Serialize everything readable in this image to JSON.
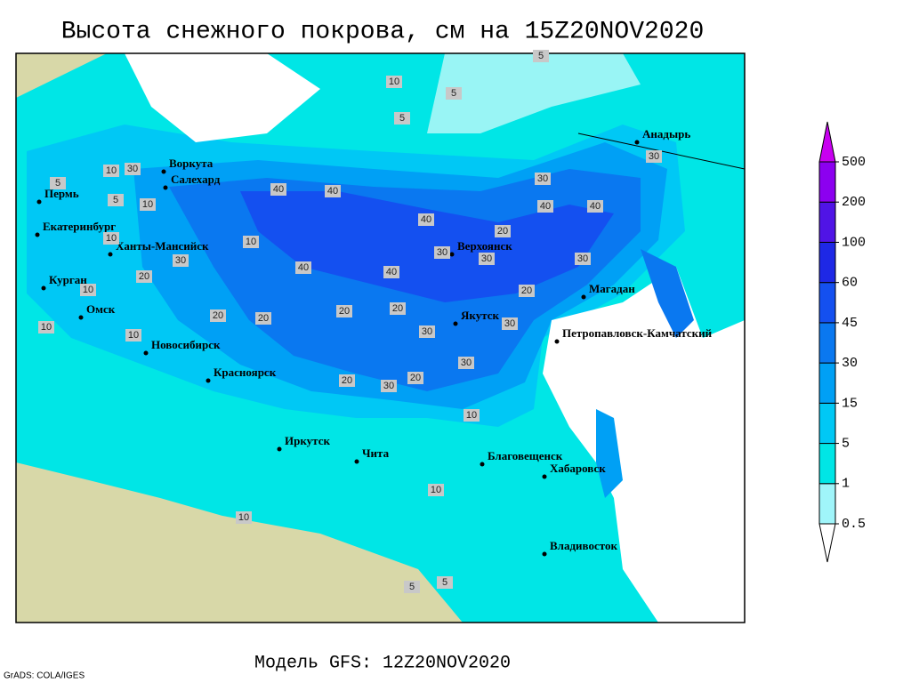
{
  "title": "Высота снежного покрова, см на 15Z20NOV2020",
  "footer": "Модель GFS: 12Z20NOV2020",
  "credit": "GrADS: COLA/IGES",
  "cities": [
    "Воркута",
    "Салехард",
    "Пермь",
    "Екатеринбург",
    "Ханты-Мансийск",
    "Курган",
    "Омск",
    "Новосибирск",
    "Красноярск",
    "Иркутск",
    "Чита",
    "Верхоянск",
    "Якутск",
    "Магадан",
    "Петропавловск-Камчатский",
    "Анадырь",
    "Благовещенск",
    "Хабаровск",
    "Владивосток"
  ],
  "contour_labels": [
    10,
    5,
    5,
    5,
    10,
    30,
    40,
    40,
    10,
    10,
    20,
    30,
    40,
    40,
    30,
    30,
    40,
    40,
    20,
    30,
    20,
    20,
    30,
    30,
    30,
    20,
    10,
    10,
    10,
    10,
    5,
    5,
    20,
    30,
    40,
    20,
    30,
    30,
    20,
    20,
    10,
    10,
    5,
    5,
    10
  ],
  "legend": {
    "levels": [
      0.5,
      1,
      5,
      15,
      30,
      45,
      60,
      100,
      200,
      500
    ],
    "colors": [
      "#ffffff",
      "#a0f5fa",
      "#00e6e6",
      "#00c8f5",
      "#00a0f5",
      "#0a78f0",
      "#1450f0",
      "#1e28e6",
      "#5014e6",
      "#8c00f0",
      "#c800f0"
    ]
  }
}
